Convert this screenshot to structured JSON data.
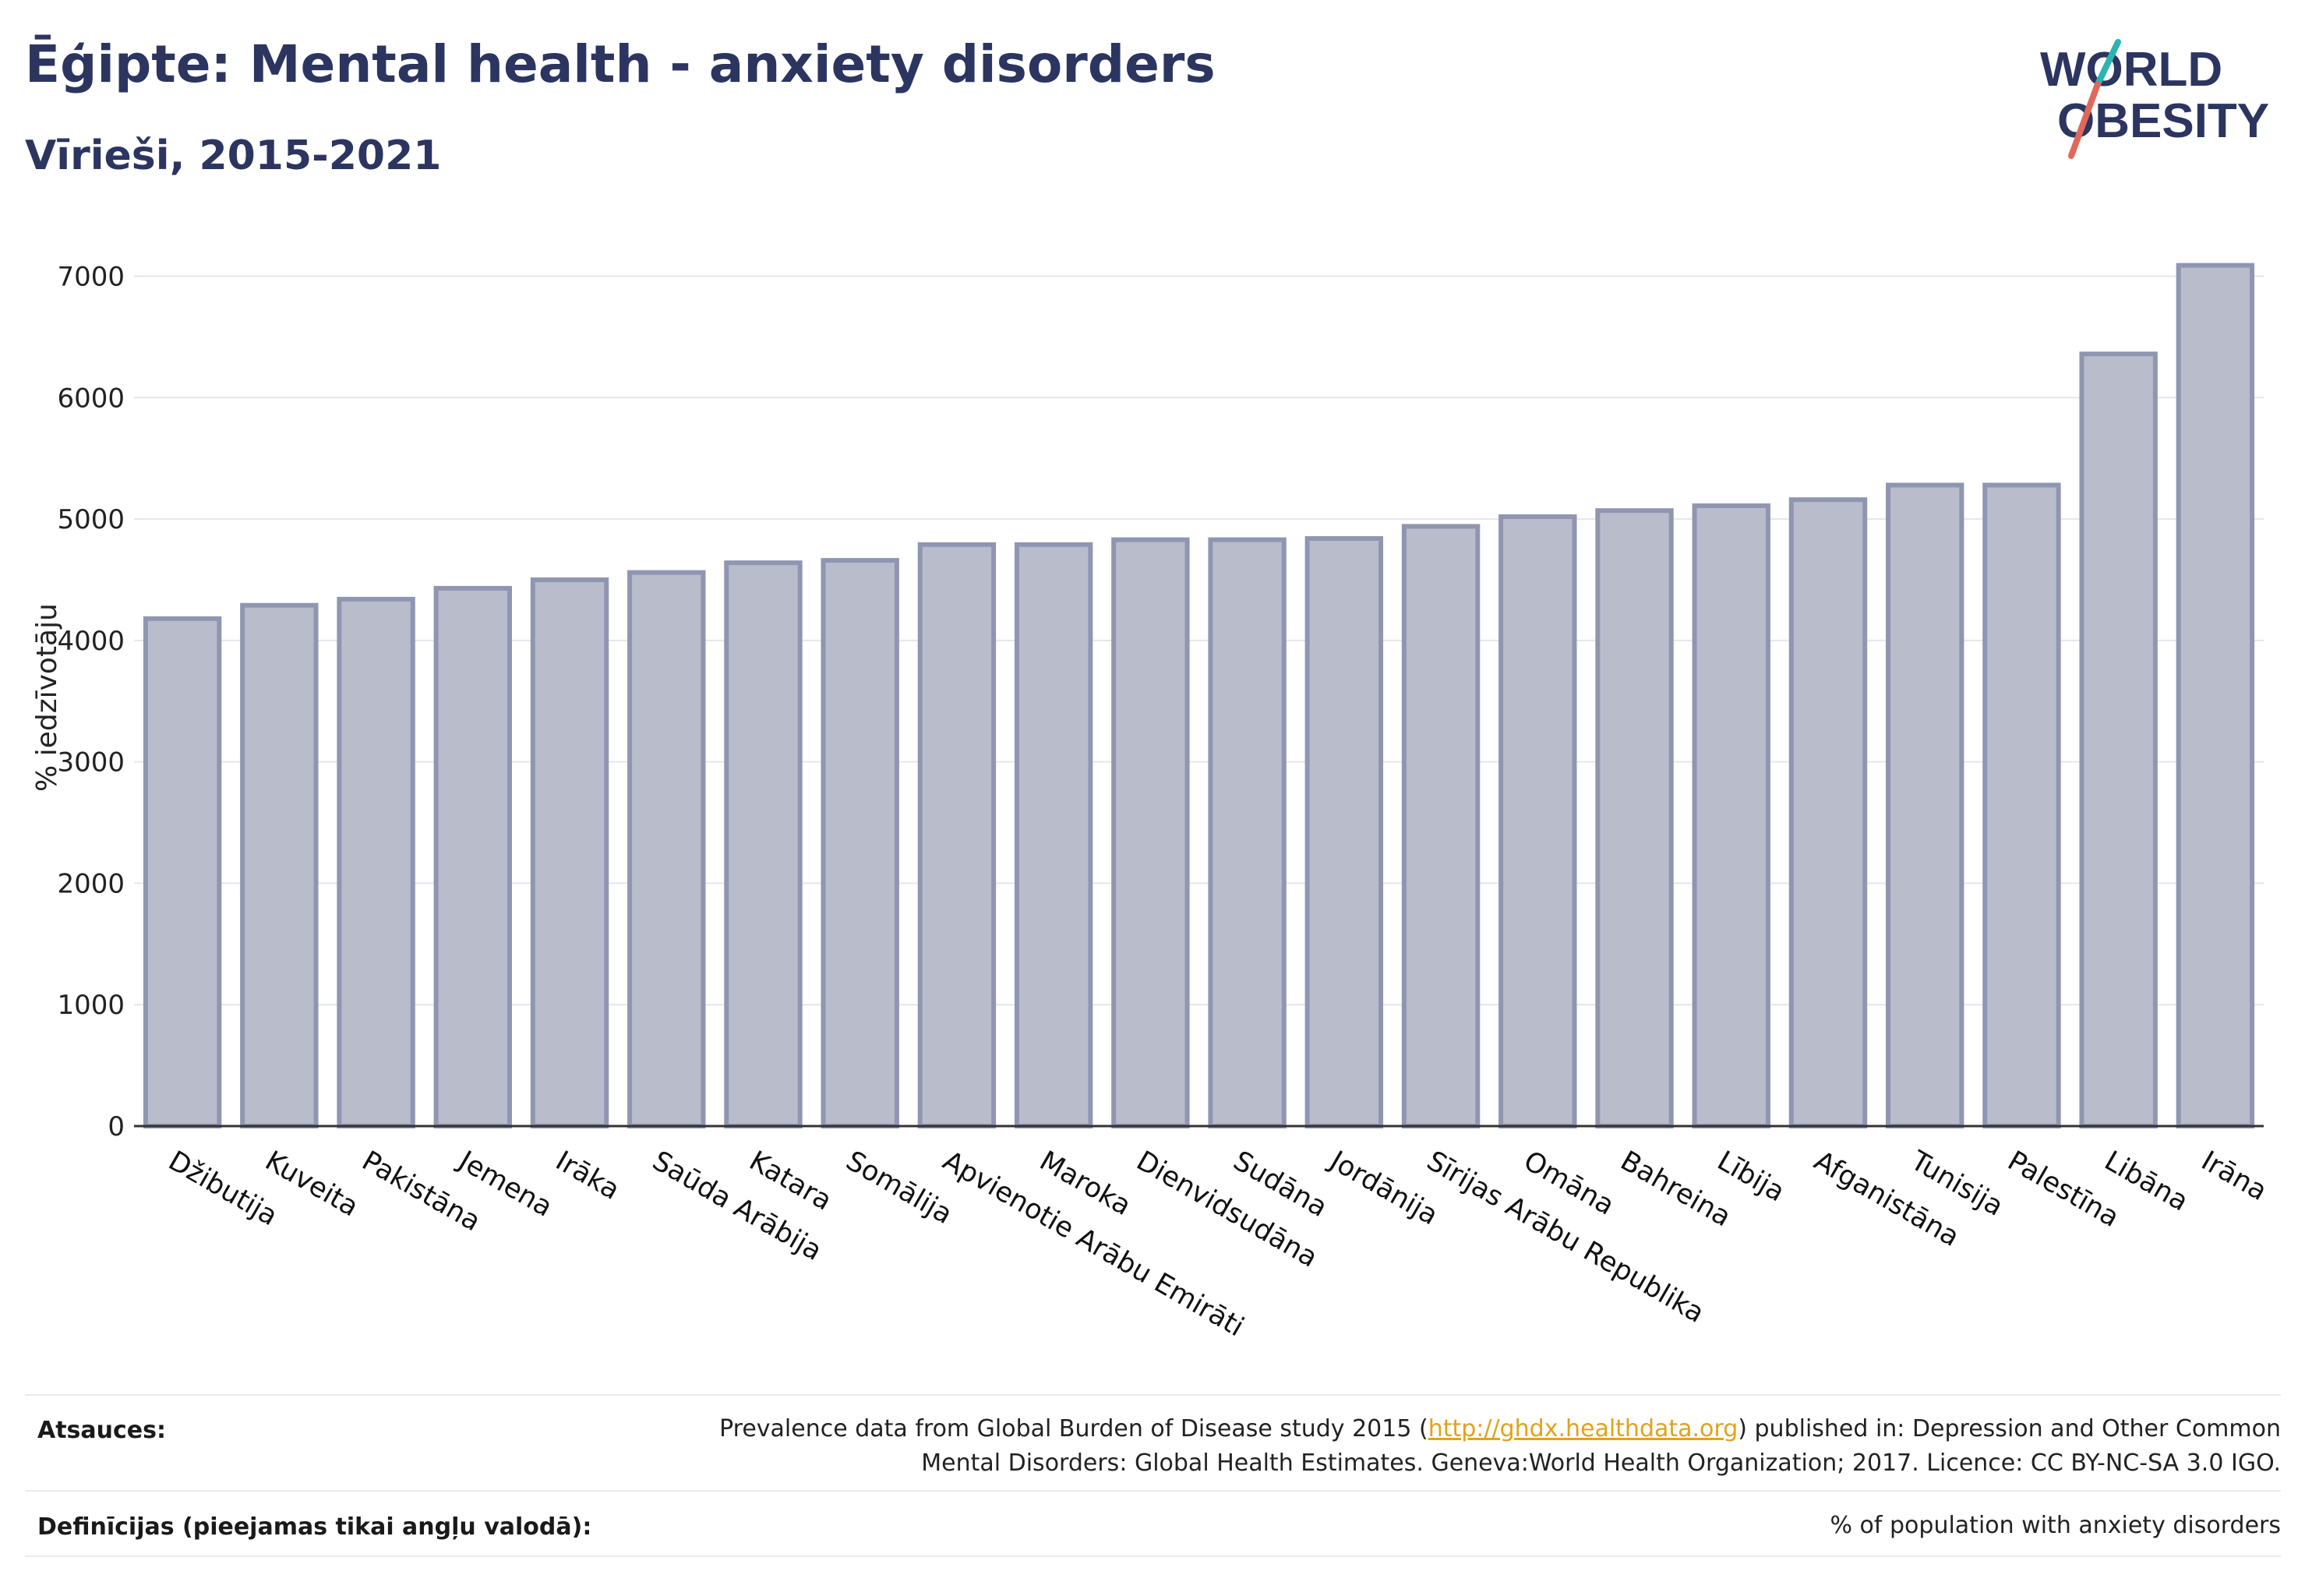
{
  "header": {
    "title": "Ēģipte: Mental health - anxiety disorders",
    "subtitle": "Vīrieši, 2015-2021"
  },
  "logo": {
    "line1": "WORLD",
    "line2": "OBESITY",
    "colors": {
      "text": "#2b3560",
      "accent_teal": "#2bb5b0",
      "accent_red": "#e0685a"
    }
  },
  "colors": {
    "bar_fill": "#b9bccb",
    "bar_stroke": "#9096b1",
    "grid": "#e4e6ee",
    "axis": "#333333",
    "title": "#2b3560",
    "link": "#e3a21a"
  },
  "chart_data": {
    "type": "bar",
    "title": "Ēģipte: Mental health - anxiety disorders",
    "subtitle": "Vīrieši, 2015-2021",
    "ylabel": "% iedzīvotāju",
    "xlabel": "",
    "ylim": [
      0,
      7350
    ],
    "yticks": [
      0,
      1000,
      2000,
      3000,
      4000,
      5000,
      6000,
      7000
    ],
    "grid": true,
    "categories": [
      "Džibutija",
      "Kuveita",
      "Pakistāna",
      "Jemena",
      "Irāka",
      "Saūda Arābija",
      "Katara",
      "Somālija",
      "Apvienotie Arābu Emirāti",
      "Maroka",
      "Dienvidsudāna",
      "Sudāna",
      "Jordānija",
      "Sīrijas Arābu Republika",
      "Omāna",
      "Bahreina",
      "Lībija",
      "Afganistāna",
      "Tunisija",
      "Palestīna",
      "Libāna",
      "Irāna"
    ],
    "values": [
      4180,
      4290,
      4340,
      4430,
      4500,
      4560,
      4640,
      4660,
      4790,
      4790,
      4830,
      4830,
      4840,
      4940,
      5020,
      5070,
      5110,
      5160,
      5280,
      5280,
      6360,
      7090
    ]
  },
  "footer": {
    "sources_label": "Atsauces:",
    "sources_text_before": "Prevalence data from Global Burden of Disease study 2015 (",
    "sources_link": "http://ghdx.healthdata.org",
    "sources_text_after": ") published in: Depression and Other Common",
    "sources_line2": "Mental Disorders: Global Health Estimates. Geneva:World Health Organization; 2017. Licence: CC BY-NC-SA 3.0 IGO.",
    "definitions_label": "Definīcijas (pieejamas tikai angļu valodā):",
    "definitions_text": "% of population with anxiety disorders"
  }
}
